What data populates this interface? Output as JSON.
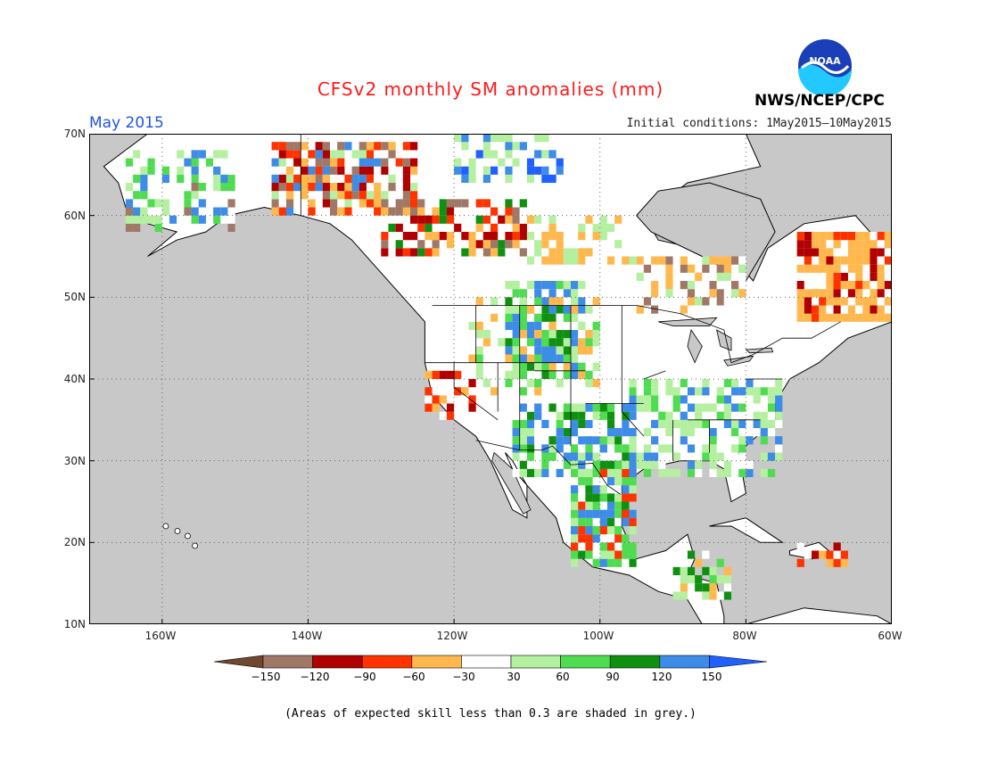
{
  "title": "CFSv2 monthly SM anomalies (mm)",
  "month": "May 2015",
  "initial_conditions": "Initial conditions: 1May2015—10May2015",
  "organization": "NWS/NCEP/CPC",
  "logo_text": "NOAA",
  "latitude_labels": [
    "70N",
    "60N",
    "50N",
    "40N",
    "30N",
    "20N",
    "10N"
  ],
  "longitude_labels": [
    "160W",
    "140W",
    "120W",
    "100W",
    "80W",
    "60W"
  ],
  "colorbar": {
    "tick_labels": [
      "−150",
      "−120",
      "−90",
      "−60",
      "−30",
      "30",
      "60",
      "90",
      "120",
      "150"
    ],
    "colors": [
      "#704830",
      "#a07868",
      "#b00000",
      "#ff3300",
      "#ffb84d",
      "#ffffff",
      "#b4f0a0",
      "#50dc50",
      "#109010",
      "#3c8ce8",
      "#2060ff"
    ]
  },
  "footnote": "(Areas of expected skill less than 0.3 are shaded in grey.)",
  "colors": {
    "ocean_grey": "#c8c8c8",
    "title_red": "#ff1a1a",
    "month_blue": "#2255dd"
  }
}
